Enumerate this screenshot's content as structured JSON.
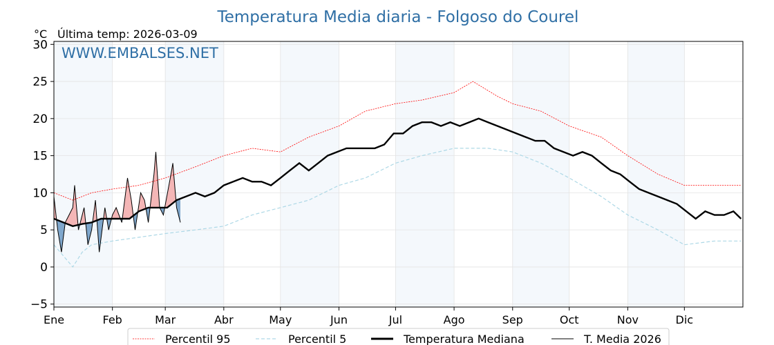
{
  "chart_data": {
    "type": "line",
    "title": "Temperatura Media diaria - Folgoso do Courel",
    "ylabel": "°C",
    "subtitle": "Última temp: 2026-03-09",
    "watermark": "WWW.EMBALSES.NET",
    "ylim": [
      -5.4,
      30.4
    ],
    "yticks": [
      -5,
      0,
      5,
      10,
      15,
      20,
      25,
      30
    ],
    "ytick_labels": [
      "−5",
      "0",
      "5",
      "10",
      "15",
      "20",
      "25",
      "30"
    ],
    "month_labels": [
      "Ene",
      "Feb",
      "Mar",
      "Abr",
      "May",
      "Jun",
      "Jul",
      "Ago",
      "Sep",
      "Oct",
      "Nov",
      "Dic"
    ],
    "month_start_days": [
      0,
      31,
      59,
      90,
      120,
      151,
      181,
      212,
      243,
      273,
      304,
      334
    ],
    "days_in_year": 365,
    "grid": true,
    "legend_position": "bottom",
    "colors": {
      "p95": "#ff0000",
      "p5": "#add8e6",
      "median": "#000000",
      "current": "#000000",
      "above": "#f4b6b6",
      "below": "#7fa7cc",
      "band": "#f4f8fc",
      "title": "#2f6fa5"
    },
    "series": [
      {
        "name": "Percentil 95",
        "key": "p95",
        "days": [
          0,
          10,
          20,
          31,
          45,
          59,
          75,
          90,
          105,
          120,
          135,
          151,
          165,
          181,
          195,
          212,
          222,
          235,
          243,
          258,
          273,
          290,
          304,
          320,
          334,
          350,
          364
        ],
        "values": [
          10,
          9,
          10,
          10.5,
          11,
          12,
          13.5,
          15,
          16,
          15.5,
          17.5,
          19,
          21,
          22,
          22.5,
          23.5,
          25,
          23,
          22,
          21,
          19,
          17.5,
          15,
          12.5,
          11,
          11,
          11
        ]
      },
      {
        "name": "Percentil 5",
        "key": "p5",
        "days": [
          0,
          10,
          15,
          20,
          31,
          45,
          59,
          75,
          90,
          105,
          120,
          135,
          151,
          165,
          181,
          195,
          212,
          230,
          243,
          258,
          273,
          290,
          304,
          320,
          334,
          350,
          364
        ],
        "values": [
          3,
          0,
          2,
          3,
          3.5,
          4,
          4.5,
          5,
          5.5,
          7,
          8,
          9,
          11,
          12,
          14,
          15,
          16,
          16,
          15.5,
          14,
          12,
          9.5,
          7,
          5,
          3,
          3.5,
          3.5
        ]
      },
      {
        "name": "Temperatura Mediana",
        "key": "median",
        "days": [
          0,
          5,
          10,
          15,
          20,
          25,
          30,
          35,
          40,
          45,
          50,
          55,
          60,
          65,
          70,
          75,
          80,
          85,
          90,
          95,
          100,
          105,
          110,
          115,
          120,
          125,
          130,
          135,
          140,
          145,
          150,
          155,
          160,
          165,
          170,
          175,
          180,
          185,
          190,
          195,
          200,
          205,
          210,
          215,
          220,
          225,
          230,
          235,
          240,
          245,
          250,
          255,
          260,
          265,
          270,
          275,
          280,
          285,
          290,
          295,
          300,
          305,
          310,
          315,
          320,
          325,
          330,
          335,
          340,
          345,
          350,
          355,
          360,
          364
        ],
        "values": [
          6.5,
          6,
          5.5,
          5.8,
          6,
          6.5,
          6.5,
          6.5,
          6.5,
          7.5,
          8,
          8,
          8,
          9,
          9.5,
          10,
          9.5,
          10,
          11,
          11.5,
          12,
          11.5,
          11.5,
          11,
          12,
          13,
          14,
          13,
          14,
          15,
          15.5,
          16,
          16,
          16,
          16,
          16.5,
          18,
          18,
          19,
          19.5,
          19.5,
          19,
          19.5,
          19,
          19.5,
          20,
          19.5,
          19,
          18.5,
          18,
          17.5,
          17,
          17,
          16,
          15.5,
          15,
          15.5,
          15,
          14,
          13,
          12.5,
          11.5,
          10.5,
          10,
          9.5,
          9,
          8.5,
          7.5,
          6.5,
          7.5,
          7,
          7,
          7.5,
          6.5
        ]
      },
      {
        "name": "T. Media 2026",
        "key": "current",
        "days": [
          0,
          2,
          4,
          6,
          8,
          10,
          11,
          13,
          16,
          18,
          20,
          22,
          24,
          27,
          29,
          31,
          33,
          36,
          39,
          41,
          43,
          46,
          48,
          50,
          53,
          54,
          56,
          58,
          62,
          63,
          65,
          67
        ],
        "values": [
          9.5,
          5,
          2,
          6,
          7,
          8,
          11,
          5,
          8,
          3,
          5,
          9,
          2,
          8,
          5,
          7,
          8,
          6,
          12,
          9,
          5,
          10,
          9,
          6,
          12.5,
          15.5,
          8,
          7,
          12.5,
          14,
          8,
          6
        ]
      }
    ]
  }
}
